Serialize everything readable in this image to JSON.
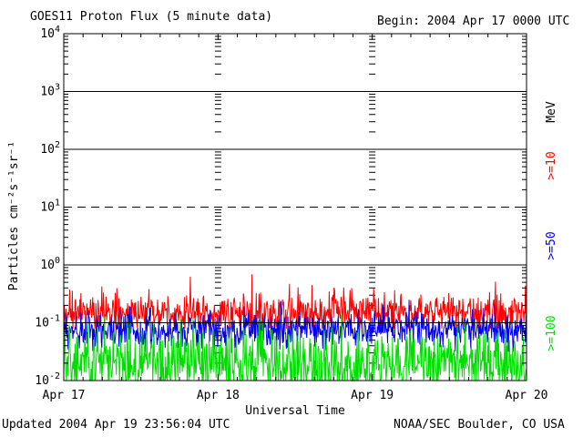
{
  "header": {
    "title": "GOES11 Proton Flux (5 minute data)",
    "begin": "Begin: 2004 Apr 17 0000 UTC"
  },
  "footer": {
    "updated": "Updated 2004 Apr 19 23:56:04 UTC",
    "source": "NOAA/SEC Boulder, CO USA"
  },
  "legend": {
    "unit": "MeV",
    "items": [
      {
        "id": "ge10",
        "label": ">=10",
        "color": "#ff0000"
      },
      {
        "id": "ge50",
        "label": ">=50",
        "color": "#0000ee"
      },
      {
        "id": "ge100",
        "label": ">=100",
        "color": "#00dd00"
      }
    ]
  },
  "chart_data": {
    "type": "line",
    "title": "GOES11 Proton Flux (5 minute data)",
    "xlabel": "Universal Time",
    "ylabel": "Particles cm⁻²s⁻¹sr⁻¹",
    "x_axis": {
      "start": "2004 Apr 17 0000 UTC",
      "end": "2004 Apr 20 0000 UTC",
      "days": 3,
      "tick_labels": [
        "Apr 17",
        "Apr 18",
        "Apr 19",
        "Apr 20"
      ],
      "minor_tick_hours": 3,
      "day_boundary_gridlines": "dashed-vertical"
    },
    "y_axis": {
      "scale": "log",
      "min": 0.01,
      "max": 10000,
      "decade_exponents": [
        4,
        3,
        2,
        1,
        0,
        -1,
        -2
      ],
      "solid_lines_at_exponents": [
        3,
        2,
        0,
        -1
      ],
      "dashed_line_at_exponent": 1
    },
    "samples_per_day": 288,
    "seed": 20040417,
    "series": [
      {
        "name": ">=10 MeV",
        "color": "#ff0000",
        "approx_mean_flux": 0.15,
        "approx_range": [
          0.08,
          0.8
        ],
        "log10_mean": -0.82,
        "log10_sd": 0.16,
        "log10_min": -1.1,
        "log10_max": -0.08,
        "spike_prob": 0.03
      },
      {
        "name": ">=50 MeV",
        "color": "#0000ee",
        "approx_mean_flux": 0.07,
        "approx_range": [
          0.03,
          0.3
        ],
        "log10_mean": -1.13,
        "log10_sd": 0.16,
        "log10_min": -1.5,
        "log10_max": -0.55,
        "spike_prob": 0.02
      },
      {
        "name": ">=100 MeV",
        "color": "#00dd00",
        "approx_mean_flux": 0.025,
        "approx_range": [
          0.01,
          0.14
        ],
        "log10_mean": -1.7,
        "log10_sd": 0.28,
        "log10_min": -2.0,
        "log10_max": -0.85,
        "spike_prob": 0.02
      }
    ]
  }
}
